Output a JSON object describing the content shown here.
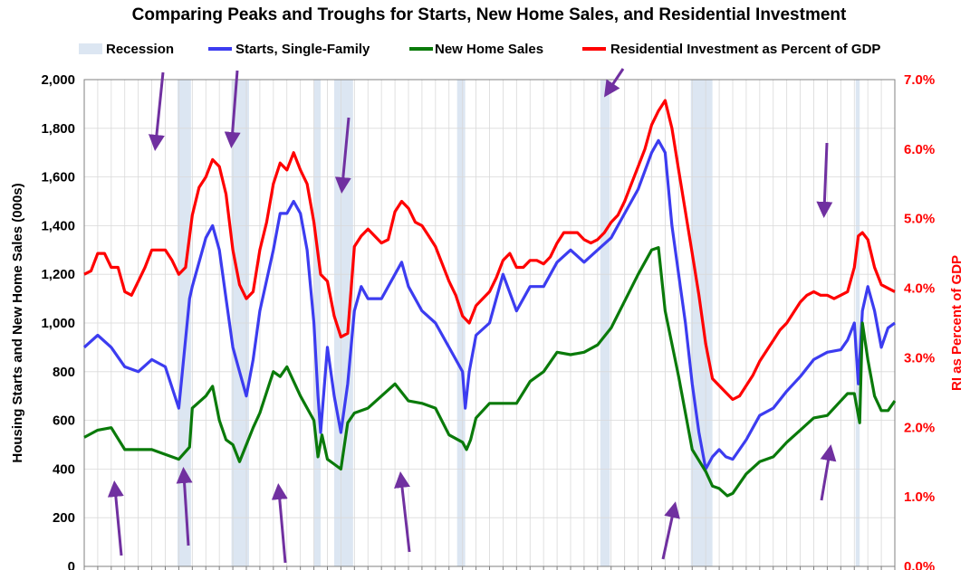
{
  "chart_data": {
    "type": "line",
    "title": "Comparing Peaks and Troughs for Starts, New Home Sales, and Residential Investment",
    "ylabel_left": "Housing Starts and New Home Sales (000s)",
    "ylabel_right": "RI as Percent of GDP",
    "ylim_left": [
      0,
      2000
    ],
    "ylim_right": [
      0,
      7
    ],
    "y_ticks_left": [
      "0",
      "200",
      "400",
      "600",
      "800",
      "1,000",
      "1,200",
      "1,400",
      "1,600",
      "1,800",
      "2,000"
    ],
    "y_ticks_right": [
      "0.0%",
      "1.0%",
      "2.0%",
      "3.0%",
      "4.0%",
      "5.0%",
      "6.0%",
      "7.0%"
    ],
    "xlim": [
      1963,
      2023
    ],
    "x_ticks_unlabeled": true,
    "grid": true,
    "legend_position": "top",
    "legend": [
      {
        "name": "Recession",
        "color": "#dce6f2"
      },
      {
        "name": "Starts, Single-Family",
        "color": "#3c3cf0"
      },
      {
        "name": "New Home Sales",
        "color": "#0a7a0a"
      },
      {
        "name": "Residential Investment as Percent of GDP",
        "color": "#ff0000"
      }
    ],
    "recessions": [
      [
        1969.9,
        1970.9
      ],
      [
        1973.9,
        1975.2
      ],
      [
        1980.0,
        1980.5
      ],
      [
        1981.5,
        1982.9
      ],
      [
        1990.6,
        1991.2
      ],
      [
        2001.2,
        2001.9
      ],
      [
        2007.9,
        2009.5
      ],
      [
        2020.1,
        2020.4
      ]
    ],
    "series": [
      {
        "name": "Starts, Single-Family",
        "color": "#3c3cf0",
        "axis": "left",
        "x": [
          1963,
          1964,
          1965,
          1966,
          1967,
          1968,
          1969,
          1970,
          1970.8,
          1971,
          1971.5,
          1972,
          1972.5,
          1973,
          1973.5,
          1974,
          1974.5,
          1975,
          1975.5,
          1976,
          1977,
          1977.5,
          1978,
          1978.5,
          1979,
          1979.5,
          1980,
          1980.3,
          1980.5,
          1981,
          1981.5,
          1982,
          1982.5,
          1983,
          1983.5,
          1984,
          1985,
          1986,
          1986.5,
          1987,
          1988,
          1989,
          1990,
          1991,
          1991.2,
          1991.5,
          1992,
          1993,
          1994,
          1995,
          1996,
          1997,
          1998,
          1999,
          2000,
          2001,
          2002,
          2003,
          2004,
          2005,
          2005.5,
          2006,
          2006.5,
          2007,
          2007.5,
          2008,
          2008.5,
          2009,
          2009.5,
          2010,
          2010.5,
          2011,
          2012,
          2013,
          2014,
          2015,
          2016,
          2017,
          2018,
          2019,
          2019.5,
          2020,
          2020.3,
          2020.6,
          2021,
          2021.5,
          2022,
          2022.5,
          2023
        ],
        "values": [
          900,
          950,
          900,
          820,
          800,
          850,
          820,
          650,
          1100,
          1150,
          1250,
          1350,
          1400,
          1300,
          1100,
          900,
          800,
          700,
          850,
          1050,
          1300,
          1450,
          1450,
          1500,
          1450,
          1300,
          1000,
          700,
          550,
          900,
          700,
          550,
          750,
          1050,
          1150,
          1100,
          1100,
          1200,
          1250,
          1150,
          1050,
          1000,
          900,
          800,
          650,
          800,
          950,
          1000,
          1200,
          1050,
          1150,
          1150,
          1250,
          1300,
          1250,
          1300,
          1350,
          1450,
          1550,
          1700,
          1750,
          1700,
          1400,
          1200,
          1000,
          750,
          550,
          400,
          450,
          480,
          450,
          440,
          520,
          620,
          650,
          720,
          780,
          850,
          880,
          890,
          930,
          1000,
          750,
          1050,
          1150,
          1050,
          900,
          980,
          1000
        ]
      },
      {
        "name": "New Home Sales",
        "color": "#0a7a0a",
        "axis": "left",
        "x": [
          1963,
          1964,
          1965,
          1966,
          1967,
          1968,
          1969,
          1970,
          1970.8,
          1971,
          1972,
          1972.5,
          1973,
          1973.5,
          1974,
          1974.5,
          1975,
          1975.5,
          1976,
          1977,
          1977.5,
          1978,
          1979,
          1980,
          1980.3,
          1980.6,
          1981,
          1981.5,
          1982,
          1982.5,
          1983,
          1984,
          1985,
          1986,
          1987,
          1988,
          1989,
          1990,
          1991,
          1991.3,
          1991.6,
          1992,
          1993,
          1994,
          1995,
          1996,
          1997,
          1998,
          1999,
          2000,
          2001,
          2002,
          2003,
          2004,
          2005,
          2005.5,
          2006,
          2007,
          2008,
          2009,
          2009.5,
          2010,
          2010.6,
          2011,
          2012,
          2013,
          2014,
          2015,
          2016,
          2017,
          2018,
          2019,
          2019.5,
          2020,
          2020.4,
          2020.6,
          2021,
          2021.5,
          2022,
          2022.5,
          2023
        ],
        "values": [
          530,
          560,
          570,
          480,
          480,
          480,
          460,
          440,
          490,
          650,
          700,
          740,
          600,
          520,
          500,
          430,
          500,
          570,
          630,
          800,
          780,
          820,
          700,
          600,
          450,
          540,
          440,
          420,
          400,
          590,
          630,
          650,
          700,
          750,
          680,
          670,
          650,
          540,
          510,
          480,
          520,
          610,
          670,
          670,
          670,
          760,
          800,
          880,
          870,
          880,
          910,
          980,
          1090,
          1200,
          1300,
          1310,
          1050,
          780,
          480,
          390,
          330,
          320,
          290,
          300,
          380,
          430,
          450,
          510,
          560,
          610,
          620,
          680,
          710,
          710,
          590,
          1000,
          850,
          700,
          640,
          640,
          680
        ]
      },
      {
        "name": "Residential Investment as Percent of GDP",
        "color": "#ff0000",
        "axis": "right",
        "x": [
          1963,
          1963.5,
          1964,
          1964.5,
          1965,
          1965.5,
          1966,
          1966.5,
          1967,
          1967.5,
          1968,
          1968.5,
          1969,
          1969.5,
          1970,
          1970.5,
          1971,
          1971.5,
          1972,
          1972.5,
          1973,
          1973.5,
          1974,
          1974.5,
          1975,
          1975.5,
          1976,
          1976.5,
          1977,
          1977.5,
          1978,
          1978.5,
          1979,
          1979.5,
          1980,
          1980.5,
          1981,
          1981.5,
          1982,
          1982.5,
          1983,
          1983.5,
          1984,
          1984.5,
          1985,
          1985.5,
          1986,
          1986.5,
          1987,
          1987.5,
          1988,
          1988.5,
          1989,
          1989.5,
          1990,
          1990.5,
          1991,
          1991.5,
          1992,
          1992.5,
          1993,
          1993.5,
          1994,
          1994.5,
          1995,
          1995.5,
          1996,
          1996.5,
          1997,
          1997.5,
          1998,
          1998.5,
          1999,
          1999.5,
          2000,
          2000.5,
          2001,
          2001.5,
          2002,
          2002.5,
          2003,
          2003.5,
          2004,
          2004.5,
          2005,
          2005.5,
          2006,
          2006.5,
          2007,
          2007.5,
          2008,
          2008.5,
          2009,
          2009.5,
          2010,
          2010.5,
          2011,
          2011.5,
          2012,
          2012.5,
          2013,
          2013.5,
          2014,
          2014.5,
          2015,
          2015.5,
          2016,
          2016.5,
          2017,
          2017.5,
          2018,
          2018.5,
          2019,
          2019.5,
          2020,
          2020.3,
          2020.6,
          2021,
          2021.5,
          2022,
          2022.5,
          2023
        ],
        "values": [
          4.2,
          4.25,
          4.5,
          4.5,
          4.3,
          4.3,
          3.95,
          3.9,
          4.1,
          4.3,
          4.55,
          4.55,
          4.55,
          4.4,
          4.2,
          4.3,
          5.05,
          5.45,
          5.6,
          5.85,
          5.75,
          5.35,
          4.55,
          4.05,
          3.85,
          3.95,
          4.55,
          4.95,
          5.5,
          5.8,
          5.7,
          5.95,
          5.7,
          5.5,
          4.95,
          4.2,
          4.1,
          3.6,
          3.3,
          3.35,
          4.6,
          4.75,
          4.85,
          4.75,
          4.65,
          4.7,
          5.1,
          5.25,
          5.15,
          4.95,
          4.9,
          4.75,
          4.6,
          4.35,
          4.1,
          3.9,
          3.6,
          3.5,
          3.75,
          3.85,
          3.95,
          4.15,
          4.4,
          4.5,
          4.3,
          4.3,
          4.4,
          4.4,
          4.35,
          4.45,
          4.65,
          4.8,
          4.8,
          4.8,
          4.7,
          4.65,
          4.7,
          4.8,
          4.95,
          5.05,
          5.25,
          5.5,
          5.75,
          6.0,
          6.35,
          6.55,
          6.7,
          6.3,
          5.7,
          5.1,
          4.5,
          3.9,
          3.2,
          2.7,
          2.6,
          2.5,
          2.4,
          2.45,
          2.6,
          2.75,
          2.95,
          3.1,
          3.25,
          3.4,
          3.5,
          3.65,
          3.8,
          3.9,
          3.95,
          3.9,
          3.9,
          3.85,
          3.9,
          3.95,
          4.3,
          4.75,
          4.8,
          4.7,
          4.3,
          4.05,
          4.0,
          3.95
        ]
      }
    ]
  }
}
